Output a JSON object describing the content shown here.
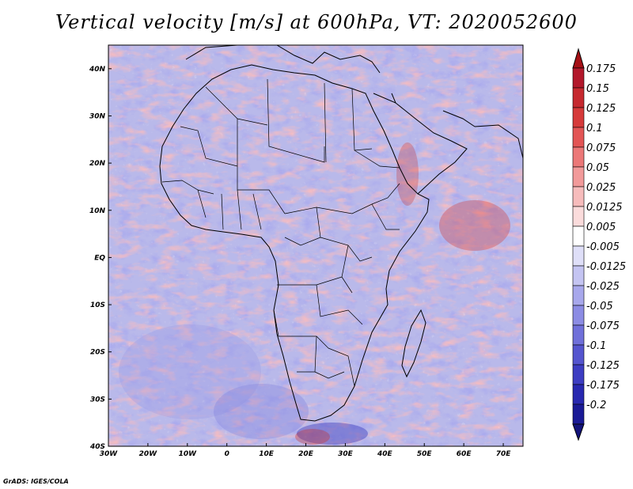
{
  "title": "Vertical velocity [m/s] at 600hPa, VT: 2020052600",
  "credit": "GrADS: IGES/COLA",
  "map": {
    "lon_range": [
      -30,
      75
    ],
    "lat_range": [
      -40,
      45
    ],
    "lon_ticks": [
      {
        "value": -30,
        "label": "30W"
      },
      {
        "value": -20,
        "label": "20W"
      },
      {
        "value": -10,
        "label": "10W"
      },
      {
        "value": 0,
        "label": "0"
      },
      {
        "value": 10,
        "label": "10E"
      },
      {
        "value": 20,
        "label": "20E"
      },
      {
        "value": 30,
        "label": "30E"
      },
      {
        "value": 40,
        "label": "40E"
      },
      {
        "value": 50,
        "label": "50E"
      },
      {
        "value": 60,
        "label": "60E"
      },
      {
        "value": 70,
        "label": "70E"
      }
    ],
    "lat_ticks": [
      {
        "value": 40,
        "label": "40N"
      },
      {
        "value": 30,
        "label": "30N"
      },
      {
        "value": 20,
        "label": "20N"
      },
      {
        "value": 10,
        "label": "10N"
      },
      {
        "value": 0,
        "label": "EQ"
      },
      {
        "value": -10,
        "label": "10S"
      },
      {
        "value": -20,
        "label": "20S"
      },
      {
        "value": -30,
        "label": "30S"
      },
      {
        "value": -40,
        "label": "40S"
      }
    ]
  },
  "colorbar": {
    "levels": [
      {
        "label": "0.175",
        "color": "#b2182b"
      },
      {
        "label": "0.15",
        "color": "#c6292f"
      },
      {
        "label": "0.125",
        "color": "#d63a3a"
      },
      {
        "label": "0.1",
        "color": "#e35555"
      },
      {
        "label": "0.075",
        "color": "#ec7878"
      },
      {
        "label": "0.05",
        "color": "#f29a9a"
      },
      {
        "label": "0.025",
        "color": "#f7bcbc"
      },
      {
        "label": "0.0125",
        "color": "#fbdcdc"
      },
      {
        "label": "0.005",
        "color": "#ffffff"
      },
      {
        "label": "-0.005",
        "color": "#dfdff8"
      },
      {
        "label": "-0.0125",
        "color": "#c4c4f2"
      },
      {
        "label": "-0.025",
        "color": "#a8a8ec"
      },
      {
        "label": "-0.05",
        "color": "#8c8ce4"
      },
      {
        "label": "-0.075",
        "color": "#7070da"
      },
      {
        "label": "-0.1",
        "color": "#5555cf"
      },
      {
        "label": "-0.125",
        "color": "#3d3dc2"
      },
      {
        "label": "-0.175",
        "color": "#2828b0"
      },
      {
        "label": "-0.2",
        "color": "#1a1a96"
      }
    ],
    "top_arrow_color": "#a50f15",
    "bottom_arrow_color": "#13137a"
  }
}
